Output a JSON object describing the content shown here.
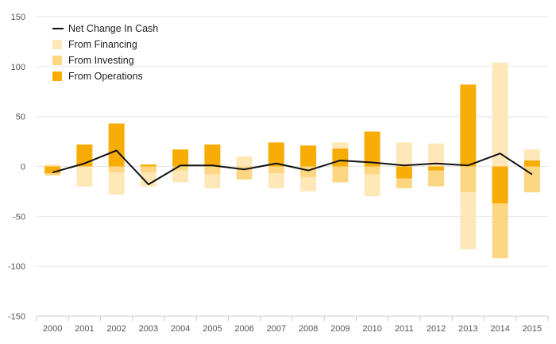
{
  "colors": {
    "net_line": "#111111",
    "financing": "#FFE7B8",
    "investing": "#FDD684",
    "operations": "#F7AC06",
    "grid": "#e6e6e6",
    "axis": "#cccccc"
  },
  "chart_data": {
    "type": "bar",
    "stacked": true,
    "categories": [
      "2000",
      "2001",
      "2002",
      "2003",
      "2004",
      "2005",
      "2006",
      "2007",
      "2008",
      "2009",
      "2010",
      "2011",
      "2012",
      "2013",
      "2014",
      "2015"
    ],
    "ylim": [
      -150,
      150
    ],
    "yticks": [
      -150,
      -100,
      -50,
      0,
      50,
      100,
      150
    ],
    "ytick_labels": [
      "-150",
      "-100",
      "-50",
      "0",
      "50",
      "100",
      "150"
    ],
    "grid": true,
    "legend_position": "top-left",
    "series": [
      {
        "name": "From Operations",
        "type": "bar",
        "color_key": "operations",
        "values": [
          -7,
          22,
          43,
          2,
          17,
          22,
          0,
          24,
          21,
          18,
          35,
          -12,
          -4,
          82,
          -37,
          6
        ]
      },
      {
        "name": "From Investing",
        "type": "bar",
        "color_key": "investing",
        "values": [
          -2,
          0,
          -6,
          -6,
          -4,
          -8,
          -13,
          -7,
          -11,
          -16,
          -8,
          -10,
          -16,
          -26,
          -55,
          -26
        ]
      },
      {
        "name": "From Financing",
        "type": "bar",
        "color_key": "financing",
        "values": [
          2,
          -20,
          -22,
          -14,
          -12,
          -14,
          10,
          -15,
          -14,
          6,
          -22,
          24,
          23,
          -57,
          104,
          11
        ]
      },
      {
        "name": "Net Change In Cash",
        "type": "line",
        "color_key": "net_line",
        "values": [
          -6,
          3,
          16,
          -18,
          1,
          1,
          -3,
          3,
          -4,
          6,
          4,
          1,
          3,
          1,
          13,
          -8
        ]
      }
    ],
    "legend": [
      "Net Change In Cash",
      "From Financing",
      "From Investing",
      "From Operations"
    ]
  }
}
